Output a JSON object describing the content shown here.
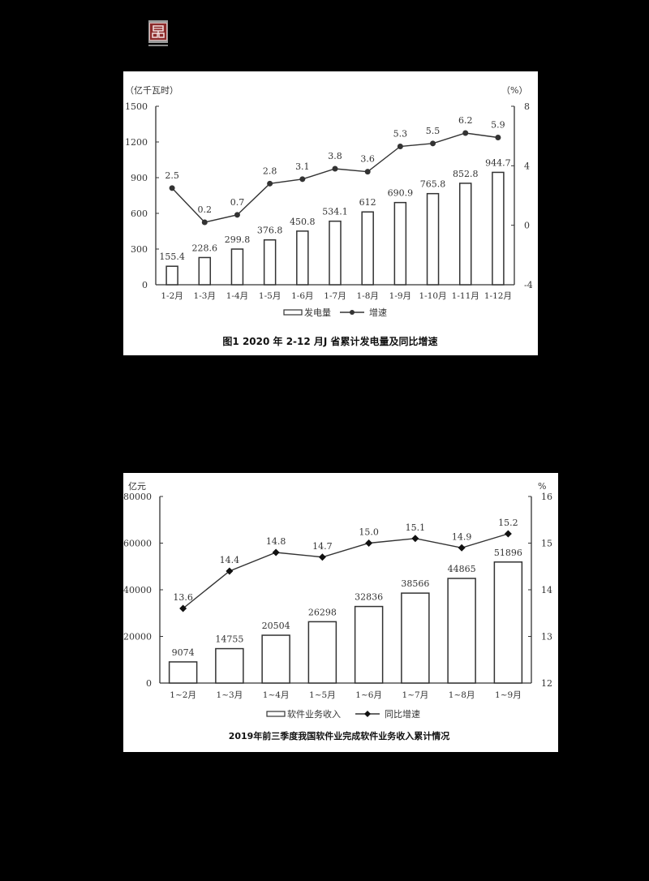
{
  "logo": {
    "icon": "red-seal-icon",
    "color": "#8b2a2a"
  },
  "chart_data": [
    {
      "type": "bar+line",
      "title": "图1    2020 年 2-12 月J 省累计发电量及同比增速",
      "left_unit": "（亿千瓦时）",
      "right_unit": "（%）",
      "categories": [
        "1-2月",
        "1-3月",
        "1-4月",
        "1-5月",
        "1-6月",
        "1-7月",
        "1-8月",
        "1-9月",
        "1-10月",
        "1-11月",
        "1-12月"
      ],
      "series": [
        {
          "name": "发电量",
          "type": "bar",
          "axis": "left",
          "values": [
            155.4,
            228.6,
            299.8,
            376.8,
            450.8,
            534.1,
            612,
            690.9,
            765.8,
            852.8,
            944.7
          ],
          "labels": [
            "155.4",
            "228.6",
            "299.8",
            "376.8",
            "450.8",
            "534.1",
            "612",
            "690.9",
            "765.8",
            "852.8",
            "944.7"
          ]
        },
        {
          "name": "增速",
          "type": "line",
          "axis": "right",
          "values": [
            2.5,
            0.2,
            0.7,
            2.8,
            3.1,
            3.8,
            3.6,
            5.3,
            5.5,
            6.2,
            5.9
          ],
          "labels": [
            "2.5",
            "0.2",
            "0.7",
            "2.8",
            "3.1",
            "3.8",
            "3.6",
            "5.3",
            "5.5",
            "6.2",
            "5.9"
          ]
        }
      ],
      "left_ticks": [
        "0",
        "300",
        "600",
        "900",
        "1200",
        "1500"
      ],
      "left_ylim": [
        0,
        1500
      ],
      "right_ticks": [
        "-4",
        "0",
        "4",
        "8"
      ],
      "right_ylim": [
        -4,
        8
      ],
      "legend": [
        "发电量",
        "增速"
      ],
      "legend_position": "bottom",
      "grid": false
    },
    {
      "type": "bar+line",
      "title": "2019年前三季度我国软件业完成软件业务收入累计情况",
      "left_unit": "亿元",
      "right_unit": "%",
      "categories": [
        "1~2月",
        "1~3月",
        "1~4月",
        "1~5月",
        "1~6月",
        "1~7月",
        "1~8月",
        "1~9月"
      ],
      "series": [
        {
          "name": "软件业务收入",
          "type": "bar",
          "axis": "left",
          "values": [
            9074,
            14755,
            20504,
            26298,
            32836,
            38566,
            44865,
            51896
          ],
          "labels": [
            "9074",
            "14755",
            "20504",
            "26298",
            "32836",
            "38566",
            "44865",
            "51896"
          ]
        },
        {
          "name": "同比增速",
          "type": "line",
          "axis": "right",
          "values": [
            13.6,
            14.4,
            14.8,
            14.7,
            15.0,
            15.1,
            14.9,
            15.2
          ],
          "labels": [
            "13.6",
            "14.4",
            "14.8",
            "14.7",
            "15.0",
            "15.1",
            "14.9",
            "15.2"
          ]
        }
      ],
      "left_ticks": [
        "0",
        "20000",
        "40000",
        "60000",
        "80000"
      ],
      "left_ylim": [
        0,
        80000
      ],
      "right_ticks": [
        "12",
        "13",
        "14",
        "15",
        "16"
      ],
      "right_ylim": [
        12,
        16
      ],
      "legend": [
        "软件业务收入",
        "同比增速"
      ],
      "legend_position": "bottom",
      "grid": false
    }
  ]
}
